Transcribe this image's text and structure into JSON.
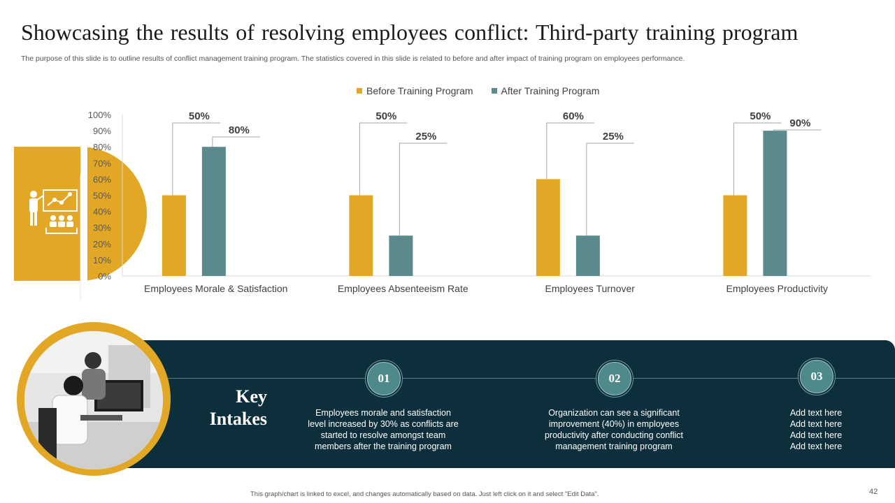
{
  "title": "Showcasing the results of resolving employees conflict: Third-party training program",
  "subtitle": "The purpose of this slide is to outline results of conflict management training program. The statistics covered in this slide is related to before and after impact of training program on employees performance.",
  "icons": [
    "trainer-presentation-icon"
  ],
  "chart_data": {
    "type": "bar",
    "categories": [
      "Employees Morale & Satisfaction",
      "Employees Absenteeism Rate",
      "Employees Turnover",
      "Employees Productivity"
    ],
    "series": [
      {
        "name": "Before Training Program",
        "values": [
          50,
          50,
          60,
          50
        ],
        "labels": [
          "50%",
          "50%",
          "60%",
          "50%"
        ],
        "color": "#e2a725"
      },
      {
        "name": "After Training Program",
        "values": [
          80,
          25,
          25,
          90
        ],
        "labels": [
          "80%",
          "25%",
          "25%",
          "90%"
        ],
        "color": "#5a8a8b"
      }
    ],
    "ylim": [
      0,
      100
    ],
    "yticks": [
      "0%",
      "10%",
      "20%",
      "30%",
      "40%",
      "50%",
      "60%",
      "70%",
      "80%",
      "90%",
      "100%"
    ],
    "grid": false,
    "legend": "top"
  },
  "panel": {
    "heading_line1": "Key",
    "heading_line2": "Intakes",
    "points": [
      {
        "num": "01",
        "text": "Employees morale and satisfaction level increased by 30% as conflicts are started to resolve amongst team members after the training program"
      },
      {
        "num": "02",
        "text": "Organization can see a significant improvement (40%) in employees productivity after conducting conflict management training program"
      },
      {
        "num": "03",
        "text": "Add text here Add text here Add text here Add text here"
      }
    ]
  },
  "footer": "This graph/chart is linked to excel, and changes automatically based on data. Just left click on it and select \"Edit Data\".",
  "page_number": "42",
  "colors": {
    "accent": "#e2a725",
    "teal": "#5a8a8b",
    "panel": "#0d2f3c"
  }
}
